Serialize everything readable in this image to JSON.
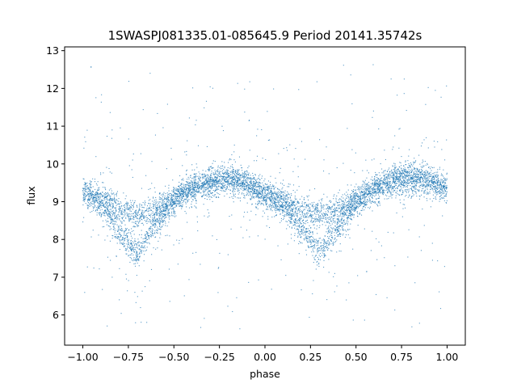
{
  "chart_data": {
    "type": "scatter",
    "title": "1SWASPJ081335.01-085645.9 Period 20141.35742s",
    "xlabel": "phase",
    "ylabel": "flux",
    "xlim": [
      -1.1,
      1.1
    ],
    "ylim": [
      5.2,
      13.1
    ],
    "xticks": [
      -1.0,
      -0.75,
      -0.5,
      -0.25,
      0.0,
      0.25,
      0.5,
      0.75,
      1.0
    ],
    "xtick_labels": [
      "−1.00",
      "−0.75",
      "−0.50",
      "−0.25",
      "0.00",
      "0.25",
      "0.50",
      "0.75",
      "1.00"
    ],
    "yticks": [
      6,
      7,
      8,
      9,
      10,
      11,
      12,
      13
    ],
    "ytick_labels": [
      "6",
      "7",
      "8",
      "9",
      "10",
      "11",
      "12",
      "13"
    ],
    "grid": false,
    "point_color": "#1f77b4",
    "series": [
      {
        "description": "phase-folded light curve, upper branch",
        "x": [
          -1.0,
          -0.9,
          -0.8,
          -0.7,
          -0.6,
          -0.5,
          -0.4,
          -0.3,
          -0.2,
          -0.1,
          0.0,
          0.1,
          0.2,
          0.3,
          0.4,
          0.5,
          0.6,
          0.7,
          0.8,
          0.9,
          1.0
        ],
        "y": [
          9.3,
          9.1,
          8.8,
          8.65,
          8.8,
          9.1,
          9.35,
          9.5,
          9.6,
          9.45,
          9.2,
          9.05,
          8.8,
          8.65,
          8.8,
          9.05,
          9.3,
          9.45,
          9.55,
          9.5,
          9.35
        ]
      },
      {
        "description": "phase-folded light curve, lower branch",
        "x": [
          -1.0,
          -0.9,
          -0.8,
          -0.7,
          -0.6,
          -0.5,
          -0.4,
          -0.3,
          -0.2,
          -0.1,
          0.0,
          0.1,
          0.2,
          0.3,
          0.4,
          0.5,
          0.6,
          0.7,
          0.8,
          0.9,
          1.0
        ],
        "y": [
          9.2,
          8.9,
          8.2,
          7.6,
          8.4,
          9.0,
          9.35,
          9.55,
          9.65,
          9.5,
          9.2,
          8.85,
          8.3,
          7.65,
          8.3,
          8.95,
          9.35,
          9.6,
          9.75,
          9.6,
          9.35
        ]
      }
    ]
  }
}
